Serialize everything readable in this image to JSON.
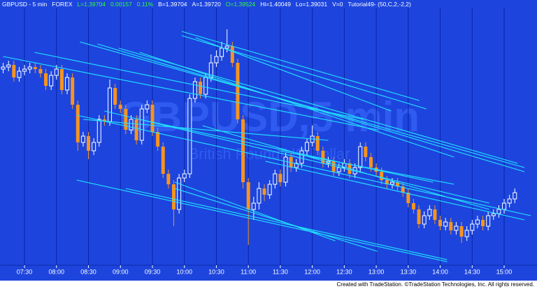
{
  "chart_data": {
    "type": "candlestick",
    "header": [
      {
        "text": "GBPUSD - 5 min",
        "color": "#ffffff"
      },
      {
        "text": "FOREX",
        "color": "#ffffff"
      },
      {
        "text": "L=1.39704",
        "color": "#33ff33"
      },
      {
        "text": "0.00157",
        "color": "#33ff33"
      },
      {
        "text": "0.11%",
        "color": "#33ff33"
      },
      {
        "text": "B=1.39704",
        "color": "#ffffff"
      },
      {
        "text": "A=1.39720",
        "color": "#ffffff"
      },
      {
        "text": "O=1.39524",
        "color": "#33ff33"
      },
      {
        "text": "Hi=1.40049",
        "color": "#ffffff"
      },
      {
        "text": "Lo=1.39031",
        "color": "#ffffff"
      },
      {
        "text": "V=0",
        "color": "#ffffff"
      },
      {
        "text": "Tutorial49- (50,C,2,-2,2)",
        "color": "#ffffff"
      }
    ],
    "watermark": "GBPUSD,5 min",
    "watermark_subtitle": "British Pound/US Dollar",
    "footer": "Created with TradeStation. ©TradeStation Technologies, Inc. All rights reserved.",
    "up_color": "#ffffff",
    "down_color": "#f7941d",
    "trendline_color": "#22e5ff",
    "xlim": [
      -0.6,
      99.9
    ],
    "ylim": [
      1.3894,
      1.4015
    ],
    "xticks": [
      {
        "value": 4,
        "label": "07:30"
      },
      {
        "value": 10,
        "label": "08:00"
      },
      {
        "value": 16,
        "label": "08:30"
      },
      {
        "value": 22,
        "label": "09:00"
      },
      {
        "value": 28,
        "label": "09:30"
      },
      {
        "value": 34,
        "label": "10:00"
      },
      {
        "value": 40,
        "label": "10:30"
      },
      {
        "value": 46,
        "label": "11:00"
      },
      {
        "value": 52,
        "label": "11:30"
      },
      {
        "value": 58,
        "label": "12:00"
      },
      {
        "value": 64,
        "label": "12:30"
      },
      {
        "value": 70,
        "label": "13:00"
      },
      {
        "value": 76,
        "label": "13:30"
      },
      {
        "value": 82,
        "label": "14:00"
      },
      {
        "value": 88,
        "label": "14:30"
      },
      {
        "value": 94,
        "label": "15:00"
      }
    ],
    "open": [
      1.3987,
      1.3988,
      1.3989,
      1.3983,
      1.3986,
      1.3987,
      1.3988,
      1.3987,
      1.3985,
      1.3979,
      1.3984,
      1.3987,
      1.3977,
      1.3983,
      1.397,
      1.3952,
      1.3955,
      1.3948,
      1.3952,
      1.3963,
      1.3962,
      1.3978,
      1.397,
      1.3968,
      1.3958,
      1.3963,
      1.3953,
      1.3968,
      1.397,
      1.3957,
      1.395,
      1.3937,
      1.3932,
      1.392,
      1.3935,
      1.3937,
      1.3973,
      1.3981,
      1.3975,
      1.3983,
      1.399,
      1.3993,
      1.3997,
      1.3998,
      1.399,
      1.3963,
      1.3933,
      1.392,
      1.3923,
      1.393,
      1.3927,
      1.3932,
      1.3937,
      1.3933,
      1.3945,
      1.394,
      1.3942,
      1.3948,
      1.3952,
      1.3955,
      1.3948,
      1.3942,
      1.3943,
      1.3938,
      1.394,
      1.3942,
      1.3937,
      1.394,
      1.395,
      1.3945,
      1.394,
      1.3938,
      1.3934,
      1.3932,
      1.3933,
      1.3931,
      1.3928,
      1.3923,
      1.392,
      1.3913,
      1.3917,
      1.392,
      1.3915,
      1.3912,
      1.3914,
      1.391,
      1.3912,
      1.3907,
      1.391,
      1.3913,
      1.3915,
      1.3912,
      1.3917,
      1.3918,
      1.392,
      1.3923,
      1.3925
    ],
    "high": [
      1.399,
      1.3991,
      1.3991,
      1.3988,
      1.3989,
      1.399,
      1.399,
      1.3989,
      1.3987,
      1.3986,
      1.3989,
      1.3989,
      1.3985,
      1.3985,
      1.3972,
      1.3957,
      1.3957,
      1.3954,
      1.3965,
      1.3965,
      1.3982,
      1.398,
      1.3972,
      1.397,
      1.3965,
      1.3965,
      1.397,
      1.3972,
      1.3972,
      1.3959,
      1.3952,
      1.3939,
      1.3934,
      1.3937,
      1.3939,
      1.3975,
      1.3983,
      1.3983,
      1.3985,
      1.3994,
      1.3996,
      1.4,
      1.4006,
      1.4,
      1.3992,
      1.3965,
      1.3935,
      1.3926,
      1.3933,
      1.3932,
      1.3934,
      1.3939,
      1.3939,
      1.3947,
      1.3947,
      1.3944,
      1.395,
      1.3954,
      1.396,
      1.3957,
      1.395,
      1.3945,
      1.3945,
      1.3942,
      1.3944,
      1.3944,
      1.3942,
      1.3952,
      1.3952,
      1.3947,
      1.3942,
      1.394,
      1.3936,
      1.3935,
      1.3935,
      1.3933,
      1.393,
      1.3925,
      1.3922,
      1.3919,
      1.3922,
      1.3922,
      1.3917,
      1.3916,
      1.3916,
      1.3914,
      1.3914,
      1.3912,
      1.3915,
      1.3917,
      1.3917,
      1.3919,
      1.392,
      1.3922,
      1.3925,
      1.3927,
      1.393
    ],
    "low": [
      1.3985,
      1.3986,
      1.3981,
      1.3981,
      1.3984,
      1.3985,
      1.3985,
      1.3983,
      1.3977,
      1.3977,
      1.3982,
      1.3975,
      1.3975,
      1.3968,
      1.3948,
      1.395,
      1.3944,
      1.3946,
      1.395,
      1.396,
      1.396,
      1.3968,
      1.3966,
      1.3956,
      1.3956,
      1.3951,
      1.3951,
      1.3966,
      1.3955,
      1.3948,
      1.3935,
      1.393,
      1.3912,
      1.3918,
      1.3933,
      1.3935,
      1.3971,
      1.3973,
      1.3973,
      1.3981,
      1.3988,
      1.3991,
      1.3995,
      1.3988,
      1.3961,
      1.393,
      1.3903,
      1.3915,
      1.392,
      1.3924,
      1.3925,
      1.393,
      1.3931,
      1.3931,
      1.3938,
      1.3938,
      1.394,
      1.3946,
      1.395,
      1.3946,
      1.394,
      1.394,
      1.3936,
      1.3936,
      1.3938,
      1.3935,
      1.3935,
      1.3938,
      1.3943,
      1.3938,
      1.3936,
      1.3932,
      1.393,
      1.393,
      1.3929,
      1.3926,
      1.3921,
      1.3918,
      1.3911,
      1.3911,
      1.3915,
      1.3913,
      1.391,
      1.391,
      1.3908,
      1.3908,
      1.3904,
      1.3905,
      1.3908,
      1.3911,
      1.391,
      1.391,
      1.3915,
      1.3916,
      1.3918,
      1.3921,
      1.3923
    ],
    "close": [
      1.3988,
      1.3989,
      1.3983,
      1.3986,
      1.3987,
      1.3988,
      1.3987,
      1.3985,
      1.3979,
      1.3984,
      1.3987,
      1.3977,
      1.3983,
      1.397,
      1.3952,
      1.3955,
      1.3948,
      1.3952,
      1.3963,
      1.3962,
      1.3978,
      1.397,
      1.3968,
      1.3958,
      1.3963,
      1.3953,
      1.3968,
      1.397,
      1.3957,
      1.395,
      1.3937,
      1.3932,
      1.392,
      1.3935,
      1.3937,
      1.3973,
      1.3981,
      1.3975,
      1.3983,
      1.399,
      1.3993,
      1.3997,
      1.3998,
      1.399,
      1.3963,
      1.3933,
      1.392,
      1.3923,
      1.393,
      1.3927,
      1.3932,
      1.3937,
      1.3933,
      1.3945,
      1.394,
      1.3942,
      1.3948,
      1.3952,
      1.3955,
      1.3948,
      1.3942,
      1.3943,
      1.3938,
      1.394,
      1.3942,
      1.3937,
      1.394,
      1.395,
      1.3945,
      1.394,
      1.3938,
      1.3934,
      1.3932,
      1.3933,
      1.3931,
      1.3928,
      1.3923,
      1.392,
      1.3913,
      1.3917,
      1.392,
      1.3915,
      1.3912,
      1.3914,
      1.391,
      1.3912,
      1.3907,
      1.391,
      1.3913,
      1.3915,
      1.3912,
      1.3917,
      1.3918,
      1.392,
      1.3923,
      1.3925,
      1.3928
    ],
    "trendlines": [
      {
        "x1": 14.4,
        "y1": 1.4,
        "x2": 97.8,
        "y2": 1.394
      },
      {
        "x1": 17.7,
        "y1": 1.3999,
        "x2": 97.8,
        "y2": 1.3938
      },
      {
        "x1": 21.7,
        "y1": 1.3997,
        "x2": 96.5,
        "y2": 1.3942
      },
      {
        "x1": 25.6,
        "y1": 1.3995,
        "x2": 84.6,
        "y2": 1.3945
      },
      {
        "x1": 33.5,
        "y1": 1.4005,
        "x2": 78.1,
        "y2": 1.3972
      },
      {
        "x1": 33.5,
        "y1": 1.4003,
        "x2": 79.4,
        "y2": 1.3968
      },
      {
        "x1": 36.1,
        "y1": 1.4002,
        "x2": 72.8,
        "y2": 1.3967
      },
      {
        "x1": 0,
        "y1": 1.3993,
        "x2": 70.2,
        "y2": 1.3958
      },
      {
        "x1": 5.9,
        "y1": 1.3995,
        "x2": 67.6,
        "y2": 1.3963
      },
      {
        "x1": 13.8,
        "y1": 1.3965,
        "x2": 99,
        "y2": 1.3917
      },
      {
        "x1": 19,
        "y1": 1.3967,
        "x2": 91.2,
        "y2": 1.3923
      },
      {
        "x1": 25.6,
        "y1": 1.3963,
        "x2": 80.7,
        "y2": 1.3933
      },
      {
        "x1": 37.4,
        "y1": 1.396,
        "x2": 91.2,
        "y2": 1.392
      },
      {
        "x1": 13.8,
        "y1": 1.3934,
        "x2": 83.3,
        "y2": 1.3895
      },
      {
        "x1": 23,
        "y1": 1.393,
        "x2": 83.3,
        "y2": 1.3896
      },
      {
        "x1": 32.2,
        "y1": 1.3933,
        "x2": 62.3,
        "y2": 1.3905
      },
      {
        "x1": 32.2,
        "y1": 1.393,
        "x2": 70.2,
        "y2": 1.39
      },
      {
        "x1": 49.2,
        "y1": 1.3943,
        "x2": 97.8,
        "y2": 1.3915
      },
      {
        "x1": 51.8,
        "y1": 1.3948,
        "x2": 84.6,
        "y2": 1.3932
      },
      {
        "x1": 15,
        "y1": 1.3963,
        "x2": 61,
        "y2": 1.3953
      }
    ]
  }
}
